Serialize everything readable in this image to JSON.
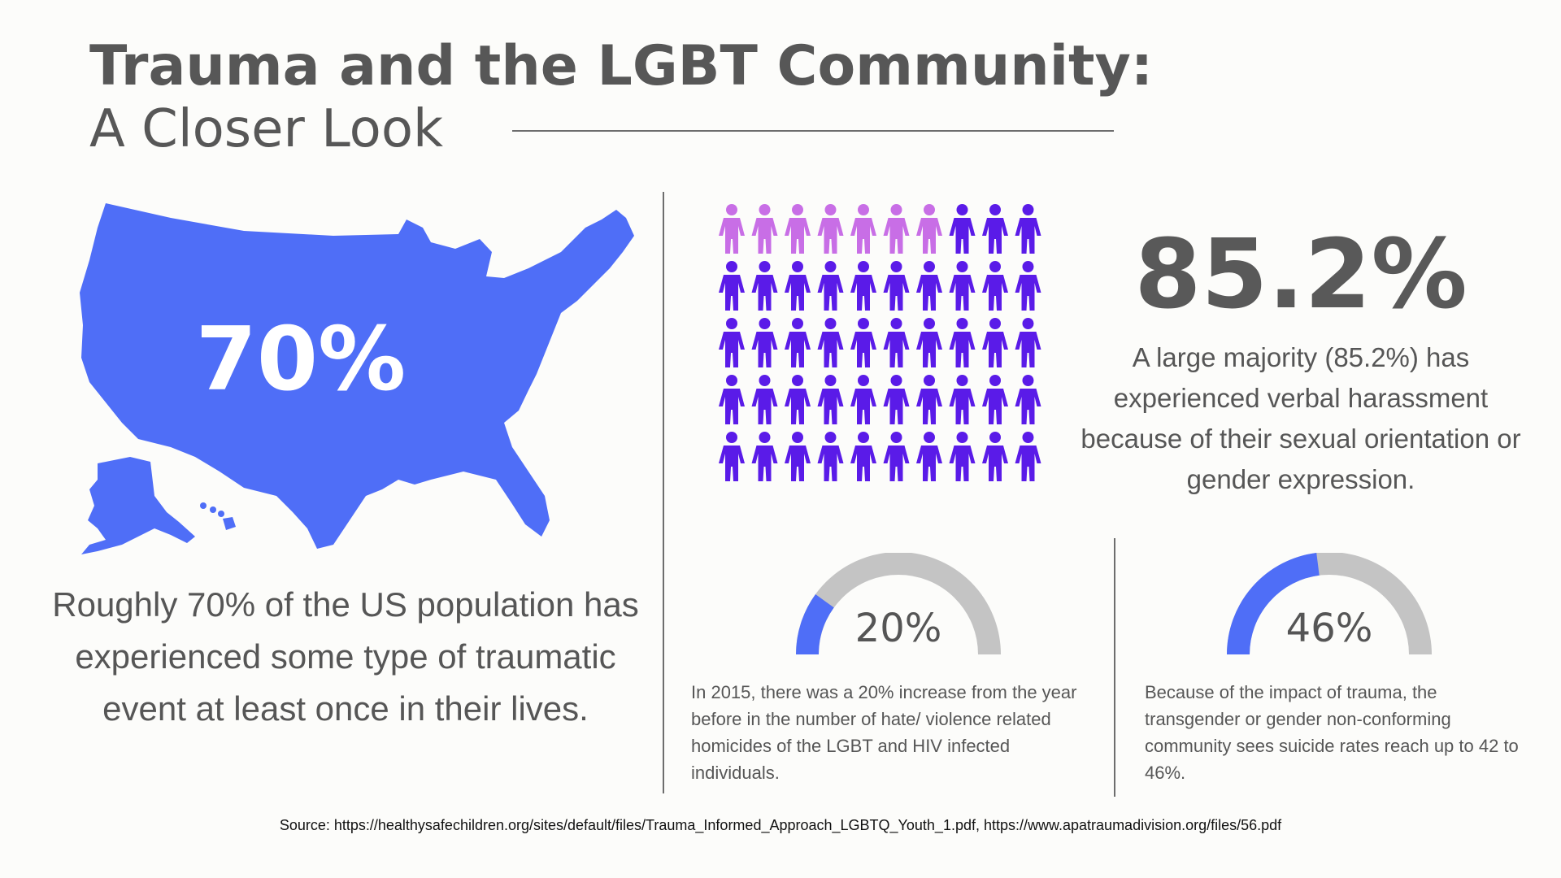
{
  "title": "Trauma and the LGBT Community:",
  "subtitle": "A Closer Look",
  "left_stat": {
    "value": "70%",
    "description": "Roughly 70% of the US population has experienced some type of traumatic event at least once in their lives."
  },
  "colors": {
    "map_blue": "#4f6ef7",
    "people_light": "#c86ee6",
    "people_dark": "#5a1be8",
    "gauge_fill": "#4f6ef7",
    "gauge_track": "#c4c4c4"
  },
  "people_chart": {
    "rows": 5,
    "cols": 10,
    "highlighted_count": 7,
    "icon": "person-icon"
  },
  "right_stat": {
    "value": "85.2%",
    "description": "A large majority (85.2%) has experienced verbal harassment because of their sexual orientation or gender expression."
  },
  "gauges": [
    {
      "value": "20%",
      "fraction": 0.2,
      "description": "In 2015, there was a 20% increase from the year before in the number of hate/ violence related homicides of the LGBT and HIV infected individuals."
    },
    {
      "value": "46%",
      "fraction": 0.46,
      "description": "Because of the impact of trauma, the transgender or gender non-conforming community sees suicide rates reach up to 42 to 46%."
    }
  ],
  "source": "Source: https://healthysafechildren.org/sites/default/files/Trauma_Informed_Approach_LGBTQ_Youth_1.pdf, https://www.apatraumadivision.org/files/56.pdf"
}
